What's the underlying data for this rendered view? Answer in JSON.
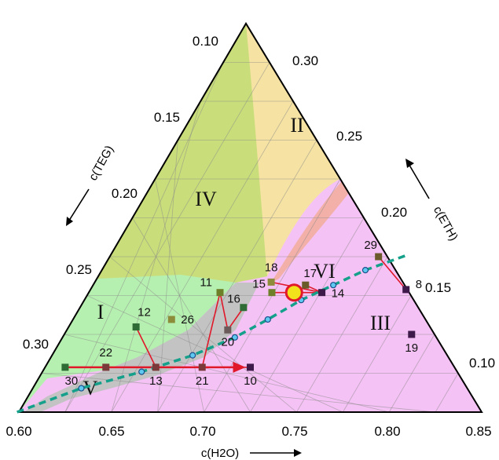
{
  "chart_data": {
    "type": "ternary",
    "axes": {
      "bottom": {
        "label": "c(H2O)",
        "ticks": [
          "0.60",
          "0.65",
          "0.70",
          "0.75",
          "0.80",
          "0.85"
        ]
      },
      "left": {
        "label": "c(TEG)",
        "ticks": [
          "0.10",
          "0.15",
          "0.20",
          "0.25",
          "0.30"
        ]
      },
      "right": {
        "label": "c(ETH)",
        "ticks": [
          "0.30",
          "0.25",
          "0.20",
          "0.15",
          "0.10"
        ]
      }
    },
    "regions": [
      {
        "name": "I",
        "color": "#b6f0b0"
      },
      {
        "name": "II",
        "color": "#f6e3a3"
      },
      {
        "name": "III",
        "color": "#f4c2f4"
      },
      {
        "name": "IV",
        "color": "#c9dd7a"
      },
      {
        "name": "V",
        "color": "#c3c3c3"
      },
      {
        "name": "VI",
        "color": "#f2b0a8"
      }
    ],
    "points": [
      {
        "id": "8",
        "h2o": 0.79,
        "teg": 0.058,
        "eth": 0.152,
        "color": "#3d1a4a"
      },
      {
        "id": "10",
        "h2o": 0.718,
        "teg": 0.182,
        "eth": 0.1,
        "color": "#3d1a4a"
      },
      {
        "id": "11",
        "h2o": 0.69,
        "teg": 0.16,
        "eth": 0.15,
        "color": "#6e7f2a"
      },
      {
        "id": "12",
        "h2o": 0.65,
        "teg": 0.223,
        "eth": 0.127,
        "color": "#2f6b34"
      },
      {
        "id": "13",
        "h2o": 0.667,
        "teg": 0.233,
        "eth": 0.1,
        "color": "#7a3a3a"
      },
      {
        "id": "14",
        "h2o": 0.745,
        "teg": 0.105,
        "eth": 0.15,
        "color": "#3d1a4a"
      },
      {
        "id": "15",
        "h2o": 0.718,
        "teg": 0.132,
        "eth": 0.15,
        "color": "#6e7f2a"
      },
      {
        "id": "16",
        "h2o": 0.705,
        "teg": 0.155,
        "eth": 0.14,
        "color": "#2f6b34"
      },
      {
        "id": "17",
        "h2o": 0.735,
        "teg": 0.11,
        "eth": 0.155,
        "color": "#6b5a2a"
      },
      {
        "id": "18",
        "h2o": 0.716,
        "teg": 0.127,
        "eth": 0.157,
        "color": "#8c8c3a"
      },
      {
        "id": "19",
        "h2o": 0.8,
        "teg": 0.078,
        "eth": 0.122,
        "color": "#3d1a4a"
      },
      {
        "id": "20",
        "h2o": 0.7,
        "teg": 0.175,
        "eth": 0.125,
        "color": "#6b5a5a"
      },
      {
        "id": "21",
        "h2o": 0.692,
        "teg": 0.208,
        "eth": 0.1,
        "color": "#7a3a3a"
      },
      {
        "id": "22",
        "h2o": 0.64,
        "teg": 0.26,
        "eth": 0.1,
        "color": "#7a3a3a"
      },
      {
        "id": "26",
        "h2o": 0.668,
        "teg": 0.2,
        "eth": 0.132,
        "color": "#8c8c3a"
      },
      {
        "id": "29",
        "h2o": 0.77,
        "teg": 0.056,
        "eth": 0.174,
        "color": "#6b5a2a"
      },
      {
        "id": "30",
        "h2o": 0.618,
        "teg": 0.282,
        "eth": 0.1,
        "color": "#2f6b34"
      }
    ],
    "highlight_point": {
      "h2o": 0.73,
      "teg": 0.12,
      "eth": 0.15,
      "color": "#f2e21c"
    },
    "binodal_curve": [
      {
        "h2o": 0.599,
        "teg": 0.331,
        "eth": 0.07
      },
      {
        "h2o": 0.63,
        "teg": 0.284,
        "eth": 0.086
      },
      {
        "h2o": 0.66,
        "teg": 0.243,
        "eth": 0.097
      },
      {
        "h2o": 0.685,
        "teg": 0.207,
        "eth": 0.108
      },
      {
        "h2o": 0.705,
        "teg": 0.175,
        "eth": 0.12
      },
      {
        "h2o": 0.72,
        "teg": 0.148,
        "eth": 0.132
      },
      {
        "h2o": 0.735,
        "teg": 0.12,
        "eth": 0.145
      },
      {
        "h2o": 0.75,
        "teg": 0.095,
        "eth": 0.155
      },
      {
        "h2o": 0.765,
        "teg": 0.07,
        "eth": 0.165
      },
      {
        "h2o": 0.785,
        "teg": 0.04,
        "eth": 0.175
      }
    ],
    "tie_lines": [
      [
        "30",
        "22",
        "13",
        "21",
        "10"
      ],
      [
        "12",
        "13"
      ],
      [
        "11",
        "21"
      ],
      [
        "11",
        "20"
      ],
      [
        "16",
        "20"
      ],
      [
        "15",
        "14"
      ],
      [
        "18",
        "14"
      ],
      [
        "17",
        "14"
      ],
      [
        "29",
        "8"
      ]
    ],
    "arrow_line": [
      "30",
      "10"
    ]
  }
}
